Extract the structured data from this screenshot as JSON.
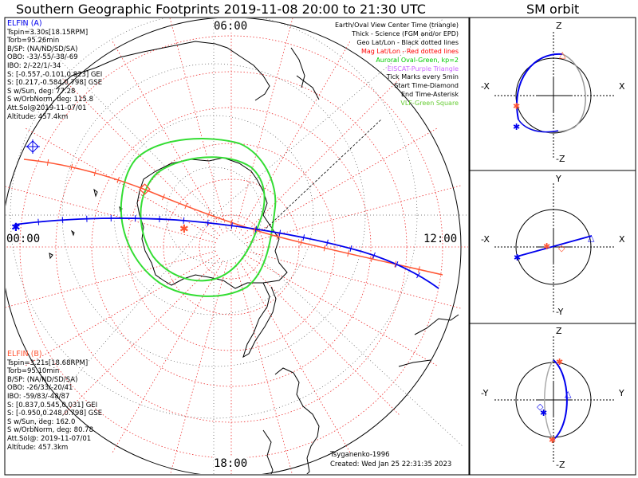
{
  "header": {
    "title": "Southern Geographic Footprints 2019-11-08 20:00 to 21:30 UTC",
    "orbit_title": "SM orbit"
  },
  "clock_labels": {
    "top": "06:00",
    "left": "00:00",
    "right": "12:00",
    "bottom": "18:00"
  },
  "elfin_a": {
    "name": "ELFIN (A)",
    "lines": [
      "Tspin=3.30s[18.15RPM]",
      "Torb=95.26min",
      "B/SP: (NA/ND/SD/SA)",
      "OBO: -33/-55/-38/-69",
      "IBO: 2/-22/1/-34",
      "S: [-0.557,-0.101,0.823] GEI",
      "S: [0.217,-0.584,0.798] GSE",
      "S w/Sun, deg: 77.28",
      "S w/OrbNorm, deg: 115.8",
      "Att.Sol@2019-11-07/01",
      "Altitude: 457.4km"
    ]
  },
  "elfin_b": {
    "name": "ELFIN (B)",
    "lines": [
      "Tspin=3.21s[18.68RPM]",
      "Torb=95.10min",
      "B/SP: (NA/ND/SD/SA)",
      "OBO: -26/33/-20/41",
      "IBO: -59/83/-48/87",
      "S: [0.837,0.545,0.031] GEI",
      "S: [-0.950,0.248,0.798] GSE",
      "S w/Sun, deg: 162.0",
      "S w/OrbNorm, deg: 80.78",
      "Att.Sol@: 2019-11-07/01",
      "Altitude: 457.3km"
    ]
  },
  "legend": [
    {
      "text": "Earth/Oval View Center Time (triangle)",
      "color": "#000000"
    },
    {
      "text": "Thick - Science (FGM and/or EPD)",
      "color": "#000000"
    },
    {
      "text": "Geo Lat/Lon - Black dotted lines",
      "color": "#000000"
    },
    {
      "text": "Mag Lat/Lon - Red dotted lines",
      "color": "#ff0000"
    },
    {
      "text": "Auroral Oval-Green, kp=2",
      "color": "#00cc00"
    },
    {
      "text": "EISCAT-Purple Triangle",
      "color": "#cc66ff"
    },
    {
      "text": "Tick Marks every 5min",
      "color": "#000000"
    },
    {
      "text": "Start Time-Diamond",
      "color": "#000000"
    },
    {
      "text": "End Time-Asterisk",
      "color": "#000000"
    },
    {
      "text": "VLF-Green Square",
      "color": "#66cc33"
    }
  ],
  "footer": {
    "model": "Tsyganenko-1996",
    "created": "Created: Wed Jan 25 22:31:35 2023"
  },
  "orbit_panels": [
    {
      "top": "Z",
      "bottom": "-Z",
      "left": "-X",
      "right": "X"
    },
    {
      "top": "Y",
      "bottom": "-Y",
      "left": "-X",
      "right": "X"
    },
    {
      "top": "Z",
      "bottom": "-Z",
      "left": "-Y",
      "right": "Y"
    }
  ],
  "colors": {
    "elfin_a": "#0000ee",
    "elfin_b": "#ff5533",
    "oval": "#33dd33",
    "mag_grid": "#ee3333",
    "geo_grid": "#555555"
  }
}
